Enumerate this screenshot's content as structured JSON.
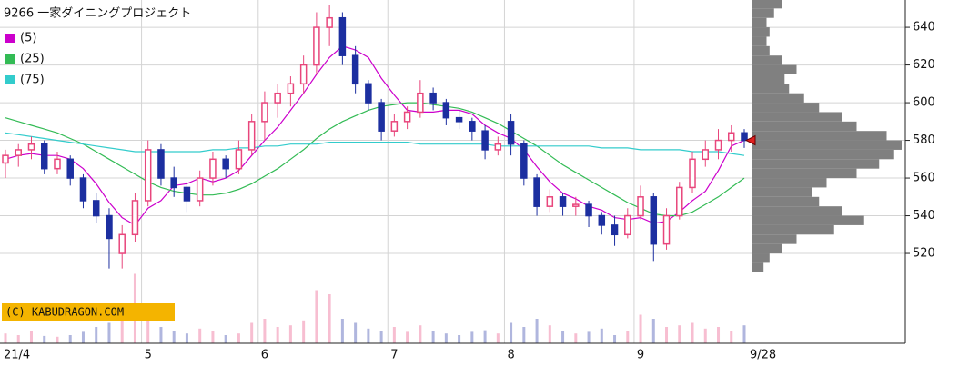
{
  "chart_data": {
    "type": "candlestick",
    "title": "9266 一家ダイニングプロジェクト",
    "watermark": "(C) KABUDRAGON.COM",
    "categories": [
      "21/4",
      null,
      null,
      null,
      null,
      null,
      null,
      null,
      null,
      null,
      null,
      "5",
      null,
      null,
      null,
      null,
      null,
      null,
      null,
      null,
      "6",
      null,
      null,
      null,
      null,
      null,
      null,
      null,
      null,
      null,
      "7",
      null,
      null,
      null,
      null,
      null,
      null,
      null,
      null,
      "8",
      null,
      null,
      null,
      null,
      null,
      null,
      null,
      null,
      null,
      "9",
      null,
      null,
      null,
      null,
      null,
      null,
      null,
      "9/28"
    ],
    "open": [
      568,
      572,
      575,
      578,
      565,
      570,
      560,
      548,
      540,
      520,
      530,
      548,
      575,
      560,
      555,
      548,
      560,
      570,
      565,
      575,
      590,
      600,
      605,
      610,
      620,
      640,
      645,
      625,
      610,
      600,
      585,
      590,
      595,
      605,
      600,
      592,
      590,
      585,
      575,
      590,
      578,
      560,
      545,
      550,
      545,
      546,
      540,
      535,
      530,
      540,
      550,
      525,
      540,
      555,
      570,
      575,
      580,
      584
    ],
    "high": [
      575,
      578,
      582,
      580,
      574,
      572,
      562,
      552,
      544,
      535,
      552,
      580,
      578,
      566,
      558,
      564,
      574,
      572,
      580,
      594,
      606,
      610,
      614,
      625,
      648,
      652,
      648,
      630,
      612,
      602,
      594,
      598,
      612,
      608,
      602,
      596,
      592,
      588,
      582,
      594,
      580,
      562,
      554,
      552,
      550,
      548,
      542,
      540,
      544,
      556,
      552,
      544,
      558,
      574,
      580,
      586,
      588,
      586
    ],
    "low": [
      560,
      566,
      570,
      562,
      562,
      556,
      544,
      536,
      512,
      512,
      526,
      545,
      556,
      550,
      542,
      545,
      556,
      560,
      562,
      572,
      580,
      592,
      598,
      605,
      615,
      630,
      620,
      605,
      596,
      580,
      582,
      586,
      592,
      596,
      588,
      586,
      580,
      570,
      572,
      572,
      556,
      540,
      542,
      540,
      540,
      534,
      530,
      524,
      528,
      538,
      516,
      522,
      538,
      552,
      566,
      570,
      574,
      576
    ],
    "close": [
      572,
      575,
      578,
      565,
      570,
      560,
      548,
      540,
      528,
      530,
      548,
      575,
      560,
      555,
      548,
      560,
      570,
      565,
      575,
      590,
      600,
      605,
      610,
      620,
      640,
      645,
      625,
      610,
      600,
      585,
      590,
      595,
      605,
      600,
      592,
      590,
      585,
      575,
      578,
      578,
      560,
      545,
      550,
      545,
      546,
      540,
      535,
      530,
      540,
      550,
      525,
      540,
      555,
      570,
      575,
      580,
      584,
      580
    ],
    "up_color": "#e8467c",
    "down_color": "#1c2fa0",
    "series": [
      {
        "name": "(5)",
        "color": "#cc00cc",
        "values": [
          570,
          572,
          573,
          572,
          572,
          570,
          565,
          557,
          547,
          539,
          535,
          544,
          548,
          556,
          557,
          560,
          558,
          560,
          564,
          572,
          580,
          587,
          596,
          605,
          615,
          624,
          630,
          628,
          624,
          613,
          604,
          596,
          595,
          595,
          596,
          596,
          594,
          588,
          584,
          581,
          575,
          566,
          558,
          552,
          549,
          545,
          543,
          539,
          538,
          539,
          536,
          537,
          542,
          548,
          553,
          564,
          577,
          580
        ]
      },
      {
        "name": "(25)",
        "color": "#33bb55",
        "values": [
          592,
          590,
          588,
          586,
          584,
          581,
          578,
          574,
          570,
          566,
          562,
          558,
          555,
          553,
          552,
          551,
          551,
          552,
          554,
          557,
          561,
          565,
          570,
          575,
          581,
          586,
          590,
          593,
          596,
          598,
          599,
          600,
          600,
          599,
          598,
          597,
          595,
          592,
          589,
          585,
          581,
          577,
          572,
          567,
          563,
          559,
          555,
          551,
          547,
          544,
          541,
          540,
          540,
          542,
          546,
          550,
          555,
          560
        ]
      },
      {
        "name": "(75)",
        "color": "#33cccc",
        "values": [
          584,
          583,
          582,
          581,
          580,
          579,
          578,
          577,
          576,
          575,
          574,
          574,
          574,
          574,
          574,
          574,
          575,
          575,
          576,
          576,
          577,
          577,
          578,
          578,
          578,
          579,
          579,
          579,
          579,
          579,
          579,
          579,
          578,
          578,
          578,
          578,
          578,
          578,
          577,
          577,
          577,
          577,
          577,
          577,
          577,
          577,
          576,
          576,
          576,
          575,
          575,
          575,
          575,
          574,
          574,
          574,
          573,
          572
        ]
      }
    ],
    "volume": [
      12,
      10,
      15,
      9,
      8,
      10,
      14,
      20,
      25,
      30,
      85,
      40,
      20,
      15,
      12,
      18,
      15,
      10,
      12,
      25,
      30,
      20,
      22,
      28,
      65,
      60,
      30,
      25,
      18,
      15,
      20,
      14,
      22,
      15,
      12,
      10,
      14,
      16,
      12,
      25,
      20,
      30,
      22,
      15,
      12,
      14,
      18,
      10,
      15,
      35,
      30,
      20,
      22,
      25,
      18,
      20,
      15,
      22
    ],
    "volume_ylim": [
      0,
      100
    ],
    "profile": {
      "color": "#808080",
      "bins": [
        510,
        515,
        520,
        525,
        530,
        535,
        540,
        545,
        550,
        555,
        560,
        565,
        570,
        575,
        580,
        585,
        590,
        595,
        600,
        605,
        610,
        615,
        620,
        625,
        630,
        635,
        640,
        645,
        650,
        655
      ],
      "counts": [
        8,
        12,
        20,
        30,
        55,
        75,
        60,
        45,
        40,
        50,
        70,
        85,
        95,
        100,
        90,
        70,
        60,
        45,
        35,
        25,
        22,
        30,
        20,
        12,
        10,
        12,
        10,
        15,
        20
      ],
      "xlim": [
        0,
        100
      ]
    },
    "ylim": [
      472.3,
      654.5
    ],
    "yticks": [
      520,
      540,
      560,
      580,
      600,
      620,
      640
    ],
    "grid": true
  }
}
